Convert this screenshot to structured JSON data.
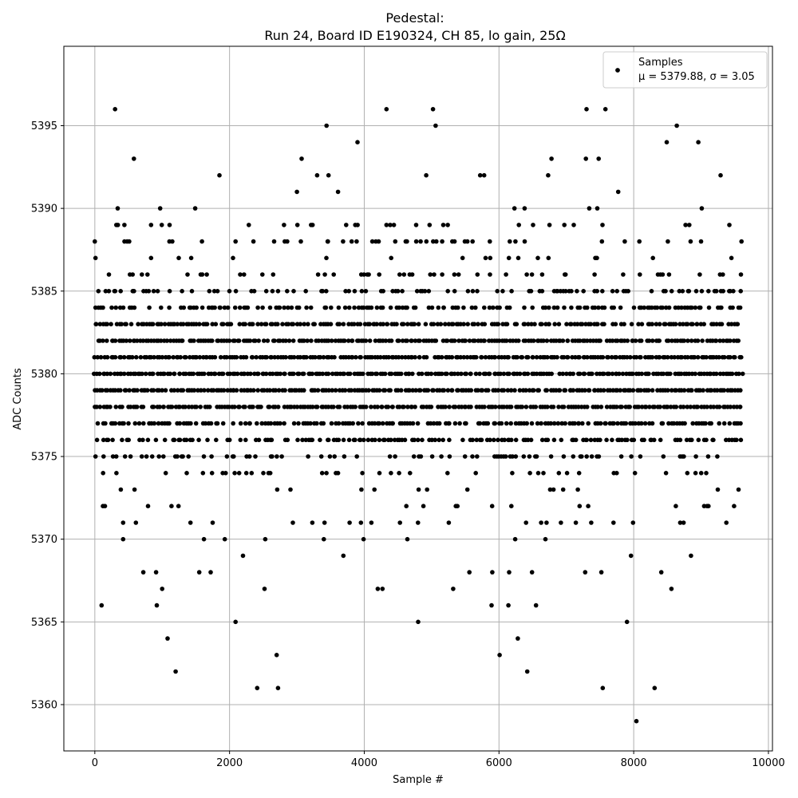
{
  "chart_data": {
    "type": "scatter",
    "title_line1": "Pedestal:",
    "title_line2": "Run 24, Board ID E190324, CH 85, lo gain, 25Ω",
    "xlabel": "Sample #",
    "ylabel": "ADC Counts",
    "xlim": [
      -460,
      10060
    ],
    "ylim": [
      5357.2,
      5399.8
    ],
    "xticks": [
      0,
      2000,
      4000,
      6000,
      8000,
      10000
    ],
    "yticks": [
      5360,
      5365,
      5370,
      5375,
      5380,
      5385,
      5390,
      5395
    ],
    "grid": true,
    "legend": {
      "placement": "top-right",
      "label": "Samples",
      "stats": "μ = 5379.88, σ = 3.05"
    },
    "series": [
      {
        "name": "Samples",
        "color": "#000000",
        "marker": "dot",
        "n_samples": 9600,
        "mean": 5379.88,
        "std": 3.05,
        "dense_points": {
          "x_range": [
            0,
            9600
          ],
          "y_levels": [
            5375,
            5376,
            5377,
            5378,
            5379,
            5380,
            5381,
            5382,
            5383,
            5384,
            5385,
            5386,
            5387
          ]
        },
        "sparse_points": [
          [
            0,
            5388
          ],
          [
            10,
            5387
          ],
          [
            100,
            5366
          ],
          [
            120,
            5372
          ],
          [
            150,
            5372
          ],
          [
            300,
            5396
          ],
          [
            320,
            5389
          ],
          [
            340,
            5390
          ],
          [
            420,
            5370
          ],
          [
            420,
            5371
          ],
          [
            440,
            5388
          ],
          [
            480,
            5388
          ],
          [
            580,
            5393
          ],
          [
            610,
            5371
          ],
          [
            720,
            5368
          ],
          [
            790,
            5372
          ],
          [
            910,
            5368
          ],
          [
            920,
            5366
          ],
          [
            970,
            5390
          ],
          [
            1000,
            5367
          ],
          [
            1080,
            5364
          ],
          [
            1110,
            5389
          ],
          [
            1200,
            5362
          ],
          [
            1420,
            5371
          ],
          [
            1490,
            5390
          ],
          [
            1550,
            5368
          ],
          [
            1620,
            5370
          ],
          [
            1720,
            5368
          ],
          [
            1750,
            5371
          ],
          [
            1850,
            5392
          ],
          [
            1930,
            5370
          ],
          [
            2090,
            5365
          ],
          [
            2200,
            5369
          ],
          [
            2410,
            5361
          ],
          [
            2520,
            5367
          ],
          [
            2530,
            5370
          ],
          [
            2700,
            5363
          ],
          [
            2720,
            5361
          ],
          [
            2940,
            5371
          ],
          [
            3000,
            5391
          ],
          [
            3070,
            5393
          ],
          [
            3210,
            5389
          ],
          [
            3300,
            5392
          ],
          [
            3400,
            5370
          ],
          [
            3410,
            5371
          ],
          [
            3440,
            5395
          ],
          [
            3470,
            5392
          ],
          [
            3610,
            5391
          ],
          [
            3690,
            5369
          ],
          [
            3900,
            5394
          ],
          [
            3950,
            5371
          ],
          [
            3990,
            5370
          ],
          [
            4120,
            5388
          ],
          [
            4200,
            5367
          ],
          [
            4270,
            5367
          ],
          [
            4330,
            5396
          ],
          [
            4400,
            5387
          ],
          [
            4460,
            5388
          ],
          [
            4640,
            5370
          ],
          [
            4770,
            5389
          ],
          [
            4800,
            5365
          ],
          [
            4920,
            5392
          ],
          [
            4970,
            5389
          ],
          [
            5020,
            5396
          ],
          [
            5060,
            5395
          ],
          [
            5070,
            5388
          ],
          [
            5240,
            5389
          ],
          [
            5320,
            5367
          ],
          [
            5340,
            5388
          ],
          [
            5560,
            5368
          ],
          [
            5720,
            5392
          ],
          [
            5780,
            5392
          ],
          [
            5870,
            5387
          ],
          [
            5890,
            5366
          ],
          [
            5900,
            5368
          ],
          [
            6010,
            5363
          ],
          [
            6140,
            5366
          ],
          [
            6150,
            5368
          ],
          [
            6160,
            5388
          ],
          [
            6230,
            5390
          ],
          [
            6240,
            5370
          ],
          [
            6280,
            5364
          ],
          [
            6380,
            5390
          ],
          [
            6420,
            5362
          ],
          [
            6490,
            5368
          ],
          [
            6550,
            5366
          ],
          [
            6690,
            5370
          ],
          [
            6730,
            5392
          ],
          [
            6750,
            5389
          ],
          [
            6780,
            5393
          ],
          [
            6970,
            5389
          ],
          [
            7110,
            5389
          ],
          [
            7280,
            5368
          ],
          [
            7290,
            5393
          ],
          [
            7300,
            5396
          ],
          [
            7340,
            5390
          ],
          [
            7370,
            5371
          ],
          [
            7430,
            5387
          ],
          [
            7460,
            5390
          ],
          [
            7480,
            5393
          ],
          [
            7520,
            5368
          ],
          [
            7540,
            5361
          ],
          [
            7580,
            5396
          ],
          [
            7700,
            5371
          ],
          [
            7770,
            5391
          ],
          [
            7900,
            5365
          ],
          [
            7960,
            5369
          ],
          [
            7990,
            5371
          ],
          [
            8040,
            5359
          ],
          [
            8310,
            5361
          ],
          [
            8410,
            5368
          ],
          [
            8490,
            5394
          ],
          [
            8560,
            5367
          ],
          [
            8640,
            5395
          ],
          [
            8690,
            5371
          ],
          [
            8740,
            5371
          ],
          [
            8850,
            5369
          ],
          [
            8960,
            5394
          ],
          [
            9000,
            5388
          ],
          [
            9010,
            5390
          ],
          [
            9110,
            5372
          ],
          [
            9290,
            5392
          ],
          [
            9420,
            5389
          ],
          [
            9490,
            5372
          ]
        ]
      }
    ]
  }
}
